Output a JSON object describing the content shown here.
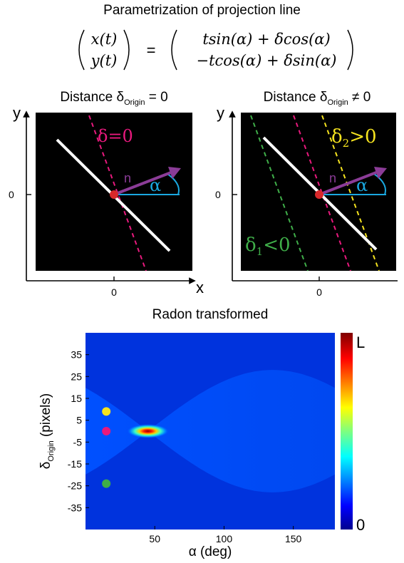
{
  "header": {
    "title": "Parametrization of projection line",
    "eq_lhs_top": "x(t)",
    "eq_lhs_bottom": "y(t)",
    "eq_equals": "=",
    "eq_rhs_top": "tsin(α) + δcos(α)",
    "eq_rhs_bottom": "−tcos(α) + δsin(α)"
  },
  "panel_left": {
    "title_main": "Distance δ",
    "title_sub": "Origin",
    "title_tail": " = 0",
    "axis_y_label": "y",
    "axis_x_label": "x",
    "y_tick_label": "0",
    "x_tick_label": "0",
    "delta_label": "δ=0",
    "n_label": "n",
    "alpha_label": "α"
  },
  "panel_right": {
    "title_main": "Distance δ",
    "title_sub": "Origin",
    "title_tail": " ≠ 0",
    "axis_y_label": "y",
    "y_tick_label": "0",
    "x_tick_label": "0",
    "delta2_main": "δ",
    "delta2_sub": "2",
    "delta2_tail": ">0",
    "delta1_main": "δ",
    "delta1_sub": "1",
    "delta1_tail": "<0",
    "n_label": "n",
    "alpha_label": "α"
  },
  "colors": {
    "magenta": "#e8197d",
    "yellow": "#f5e31f",
    "green": "#3fae49",
    "purple": "#8b3c97",
    "cyan": "#1aa8e0",
    "red_dot": "#d8282a"
  },
  "chart_data": {
    "type": "heatmap",
    "title": "Radon transformed",
    "xlabel": "α (deg)",
    "ylabel_main": "δ",
    "ylabel_sub": "Origin",
    "ylabel_tail": " (pixels)",
    "x_ticks": [
      50,
      100,
      150
    ],
    "y_ticks": [
      35,
      25,
      15,
      5,
      -5,
      -15,
      -25,
      -35
    ],
    "y_tick_labels": [
      "35",
      "25",
      "15",
      "5",
      "-5",
      "-15",
      "-25",
      "-35"
    ],
    "x_tick_labels": [
      "50",
      "100",
      "150"
    ],
    "xlim": [
      0,
      180
    ],
    "ylim": [
      -45,
      45
    ],
    "colorbar": {
      "max_label": "L",
      "min_label": "0"
    },
    "peak": {
      "alpha": 45,
      "delta": 0
    },
    "markers": [
      {
        "alpha": 15,
        "delta": 9,
        "color": "#f5e31f"
      },
      {
        "alpha": 15,
        "delta": 0,
        "color": "#e8197d"
      },
      {
        "alpha": 15,
        "delta": -24,
        "color": "#3fae49"
      }
    ]
  }
}
